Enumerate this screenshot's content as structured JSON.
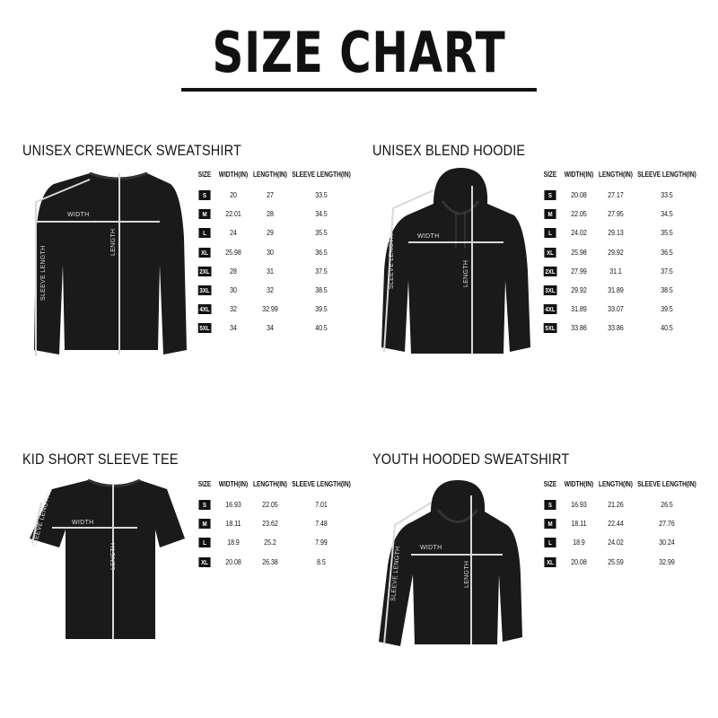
{
  "title": "SIZE CHART",
  "column_headers": [
    "SIZE",
    "WIDTH(IN)",
    "LENGTH(IN)",
    "SLEEVE LENGTH(IN)"
  ],
  "measure_labels": {
    "width": "WIDTH",
    "length": "LENGTH",
    "sleeve": "SLEEVE LENGTH"
  },
  "colors": {
    "garment": "#1a1a1a",
    "measure_line": "#d8d8d8",
    "badge": "#111111"
  },
  "sections": [
    {
      "title": "UNISEX CREWNECK SWEATSHIRT",
      "garment_icon": "crewneck-sweatshirt",
      "rows": [
        [
          "S",
          "20",
          "27",
          "33.5"
        ],
        [
          "M",
          "22.01",
          "28",
          "34.5"
        ],
        [
          "L",
          "24",
          "29",
          "35.5"
        ],
        [
          "XL",
          "25.98",
          "30",
          "36.5"
        ],
        [
          "2XL",
          "28",
          "31",
          "37.5"
        ],
        [
          "3XL",
          "30",
          "32",
          "38.5"
        ],
        [
          "4XL",
          "32",
          "32.99",
          "39.5"
        ],
        [
          "5XL",
          "34",
          "34",
          "40.5"
        ]
      ]
    },
    {
      "title": "UNISEX BLEND HOODIE",
      "garment_icon": "hoodie",
      "rows": [
        [
          "S",
          "20.08",
          "27.17",
          "33.5"
        ],
        [
          "M",
          "22.05",
          "27.95",
          "34.5"
        ],
        [
          "L",
          "24.02",
          "29.13",
          "35.5"
        ],
        [
          "XL",
          "25.98",
          "29.92",
          "36.5"
        ],
        [
          "2XL",
          "27.99",
          "31.1",
          "37.5"
        ],
        [
          "3XL",
          "29.92",
          "31.89",
          "38.5"
        ],
        [
          "4XL",
          "31.89",
          "33.07",
          "39.5"
        ],
        [
          "5XL",
          "33.86",
          "33.86",
          "40.5"
        ]
      ]
    },
    {
      "title": "KID SHORT SLEEVE TEE",
      "garment_icon": "tshirt",
      "rows": [
        [
          "S",
          "16.93",
          "22.05",
          "7.01"
        ],
        [
          "M",
          "18.11",
          "23.62",
          "7.48"
        ],
        [
          "L",
          "18.9",
          "25.2",
          "7.99"
        ],
        [
          "XL",
          "20.08",
          "26.38",
          "8.5"
        ]
      ]
    },
    {
      "title": "YOUTH HOODED SWEATSHIRT",
      "garment_icon": "hoodie",
      "rows": [
        [
          "S",
          "16.93",
          "21.26",
          "26.5"
        ],
        [
          "M",
          "18.11",
          "22.44",
          "27.76"
        ],
        [
          "L",
          "18.9",
          "24.02",
          "30.24"
        ],
        [
          "XL",
          "20.08",
          "25.59",
          "32.99"
        ]
      ]
    }
  ]
}
